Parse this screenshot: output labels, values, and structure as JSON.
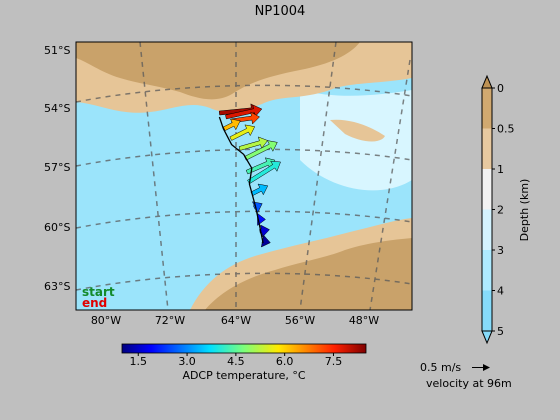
{
  "title": "NP1004",
  "map": {
    "lat_labels": [
      "51°S",
      "54°S",
      "57°S",
      "60°S",
      "63°S"
    ],
    "lon_labels": [
      "80°W",
      "72°W",
      "64°W",
      "56°W",
      "48°W"
    ],
    "legend_start": "start",
    "legend_end": "end",
    "start_color": "#138a2a",
    "end_color": "#e00000",
    "land_color": "#c9a26a",
    "shelf_color": "#e6c597",
    "ocean_color": "#9be4fb",
    "deep_color": "#d8f6ff"
  },
  "depth_bar": {
    "label": "Depth (km)",
    "ticks": [
      "0",
      "0.5",
      "1",
      "2",
      "3",
      "4",
      "5"
    ],
    "colors": [
      "#be9254",
      "#d1a970",
      "#e7c9a0",
      "#f2f2f2",
      "#d4f3ff",
      "#aeeaff",
      "#86dbfa"
    ]
  },
  "temp_bar": {
    "label": "ADCP temperature, °C",
    "ticks": [
      "1.5",
      "3.0",
      "4.5",
      "6.0",
      "7.5"
    ],
    "vmin": 1.0,
    "vmax": 8.5
  },
  "scale": {
    "label": "0.5 m/s",
    "caption": "velocity at 96m"
  },
  "chart_data": {
    "type": "vector-map",
    "title": "NP1004",
    "ship_track": [
      {
        "lon": -66.0,
        "lat": -54.4
      },
      {
        "lon": -65.5,
        "lat": -55.0
      },
      {
        "lon": -64.5,
        "lat": -55.8
      },
      {
        "lon": -63.0,
        "lat": -56.3
      },
      {
        "lon": -62.0,
        "lat": -57.0
      },
      {
        "lon": -62.3,
        "lat": -57.8
      },
      {
        "lon": -61.5,
        "lat": -59.0
      },
      {
        "lon": -61.0,
        "lat": -60.0
      },
      {
        "lon": -60.6,
        "lat": -60.8
      }
    ],
    "vectors": [
      {
        "lon": -66.0,
        "lat": -54.2,
        "temp": 8.2,
        "u": 0.5,
        "v": 0.05
      },
      {
        "lon": -65.2,
        "lat": -54.4,
        "temp": 7.8,
        "u": 0.45,
        "v": 0.1
      },
      {
        "lon": -64.5,
        "lat": -54.6,
        "temp": 7.2,
        "u": 0.35,
        "v": 0.05
      },
      {
        "lon": -65.4,
        "lat": -55.0,
        "temp": 6.2,
        "u": 0.2,
        "v": 0.1
      },
      {
        "lon": -64.6,
        "lat": -55.5,
        "temp": 5.6,
        "u": 0.3,
        "v": 0.15
      },
      {
        "lon": -63.5,
        "lat": -56.0,
        "temp": 5.2,
        "u": 0.35,
        "v": 0.1
      },
      {
        "lon": -62.8,
        "lat": -56.5,
        "temp": 4.8,
        "u": 0.4,
        "v": 0.2
      },
      {
        "lon": -62.6,
        "lat": -57.2,
        "temp": 4.3,
        "u": 0.35,
        "v": 0.15
      },
      {
        "lon": -62.4,
        "lat": -57.7,
        "temp": 4.0,
        "u": 0.4,
        "v": 0.25
      },
      {
        "lon": -62.0,
        "lat": -58.3,
        "temp": 3.4,
        "u": 0.2,
        "v": 0.1
      },
      {
        "lon": -61.7,
        "lat": -59.0,
        "temp": 2.6,
        "u": 0.1,
        "v": 0.05
      },
      {
        "lon": -61.3,
        "lat": -59.6,
        "temp": 2.0,
        "u": 0.1,
        "v": 0.0
      },
      {
        "lon": -61.0,
        "lat": -60.2,
        "temp": 1.6,
        "u": 0.12,
        "v": 0.02
      },
      {
        "lon": -60.7,
        "lat": -60.7,
        "temp": 1.2,
        "u": 0.1,
        "v": -0.02
      }
    ]
  }
}
